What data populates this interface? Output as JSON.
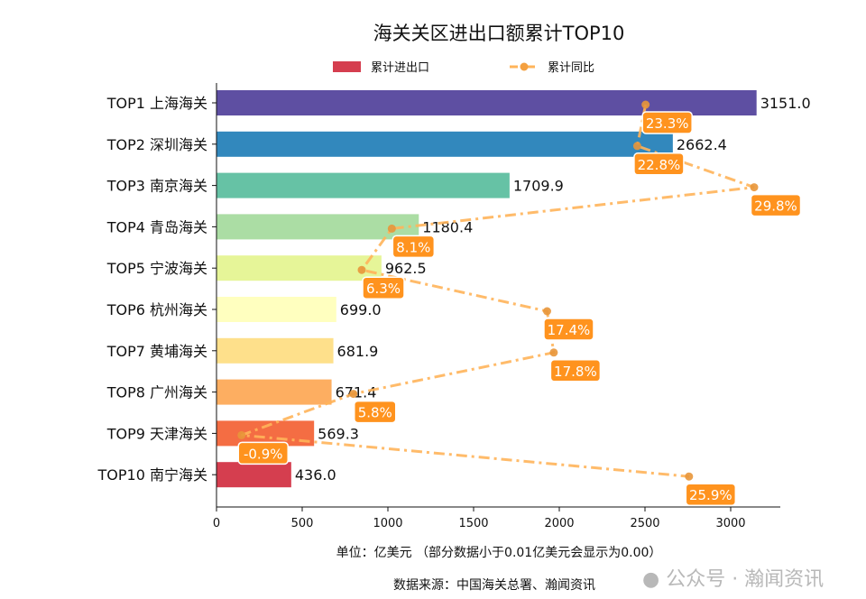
{
  "chart_data": {
    "type": "bar",
    "title": "海关关区进出口额累计TOP10",
    "categories": [
      "TOP1 上海海关",
      "TOP2 深圳海关",
      "TOP3 南京海关",
      "TOP4 青岛海关",
      "TOP5 宁波海关",
      "TOP6 杭州海关",
      "TOP7 黄埔海关",
      "TOP8 广州海关",
      "TOP9 天津海关",
      "TOP10 南宁海关"
    ],
    "series": [
      {
        "name": "累计进出口",
        "type": "bar",
        "values": [
          3151.0,
          2662.4,
          1709.9,
          1180.4,
          962.5,
          699.0,
          681.9,
          671.4,
          569.3,
          436.0
        ],
        "value_labels": [
          "3151.0",
          "2662.4",
          "1709.9",
          "1180.4",
          "962.5",
          "699.0",
          "681.9",
          "671.4",
          "569.3",
          "436.0"
        ]
      },
      {
        "name": "累计同比",
        "type": "line",
        "values": [
          23.3,
          22.8,
          29.8,
          8.1,
          6.3,
          17.4,
          17.8,
          5.8,
          -0.9,
          25.9
        ],
        "value_labels": [
          "23.3%",
          "22.8%",
          "29.8%",
          "8.1%",
          "6.3%",
          "17.4%",
          "17.8%",
          "5.8%",
          "-0.9%",
          "25.9%"
        ]
      }
    ],
    "bar_colors": [
      "#5e4fa2",
      "#3288bd",
      "#66c2a5",
      "#abdda4",
      "#e6f598",
      "#ffffbf",
      "#fee08b",
      "#fdae61",
      "#f46d43",
      "#d53e4f"
    ],
    "line_color": "#ffb45a",
    "label_box_color": "#ff931e",
    "xticks": [
      "0",
      "500",
      "1000",
      "1500",
      "2000",
      "2500",
      "3000"
    ],
    "xlim": [
      0,
      3280
    ],
    "xlabel": "单位：亿美元  （部分数据小于0.01亿美元会显示为0.00）",
    "source": "数据来源：中国海关总署、瀚闻资讯",
    "legend_position": "top",
    "grid": false,
    "watermark": "公众号 · 瀚闻资讯"
  }
}
